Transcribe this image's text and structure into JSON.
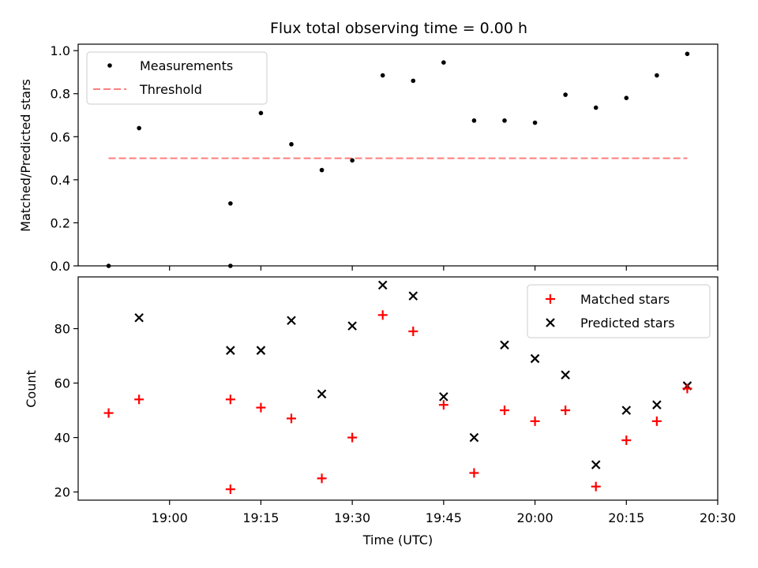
{
  "chart_data": [
    {
      "type": "scatter",
      "title": "Flux total observing time = 0.00 h",
      "xlabel": "",
      "ylabel": "Matched/Predicted stars",
      "xlim": [
        "18:45",
        "20:30"
      ],
      "ylim": [
        0,
        1.03
      ],
      "yticks": [
        "0.0",
        "0.2",
        "0.4",
        "0.6",
        "0.8",
        "1.0"
      ],
      "legend_position": "top-left",
      "series": [
        {
          "name": "Measurements",
          "marker": "dot",
          "color": "#000000",
          "x": [
            "18:50",
            "18:55",
            "19:10",
            "19:10",
            "19:15",
            "19:20",
            "19:25",
            "19:30",
            "19:35",
            "19:40",
            "19:45",
            "19:50",
            "19:55",
            "20:00",
            "20:05",
            "20:10",
            "20:15",
            "20:20",
            "20:25"
          ],
          "y": [
            0.0,
            0.64,
            0.0,
            0.29,
            0.71,
            0.565,
            0.445,
            0.49,
            0.885,
            0.86,
            0.945,
            0.675,
            0.675,
            0.665,
            0.795,
            0.735,
            0.78,
            0.885,
            0.985
          ]
        },
        {
          "name": "Threshold",
          "marker": "dashed-line",
          "color": "#ff7f7f",
          "x": [
            "18:50",
            "20:25"
          ],
          "y": [
            0.5,
            0.5
          ]
        }
      ]
    },
    {
      "type": "scatter",
      "xlabel": "Time (UTC)",
      "ylabel": "Count",
      "xlim": [
        "18:45",
        "20:30"
      ],
      "ylim": [
        17,
        99
      ],
      "yticks": [
        "20",
        "40",
        "60",
        "80"
      ],
      "xticks": [
        "19:00",
        "19:15",
        "19:30",
        "19:45",
        "20:00",
        "20:15",
        "20:30"
      ],
      "legend_position": "top-right",
      "series": [
        {
          "name": "Matched stars",
          "marker": "plus",
          "color": "#ff0000",
          "x": [
            "18:50",
            "18:55",
            "19:10",
            "19:10",
            "19:15",
            "19:20",
            "19:25",
            "19:30",
            "19:35",
            "19:40",
            "19:45",
            "19:50",
            "19:55",
            "20:00",
            "20:05",
            "20:10",
            "20:15",
            "20:20",
            "20:25"
          ],
          "y": [
            49,
            54,
            54,
            21,
            51,
            47,
            25,
            40,
            85,
            79,
            52,
            27,
            50,
            46,
            50,
            22,
            39,
            46,
            58
          ]
        },
        {
          "name": "Predicted stars",
          "marker": "x",
          "color": "#000000",
          "x": [
            "18:55",
            "19:10",
            "19:15",
            "19:20",
            "19:25",
            "19:30",
            "19:35",
            "19:40",
            "19:45",
            "19:50",
            "19:55",
            "20:00",
            "20:05",
            "20:10",
            "20:15",
            "20:20",
            "20:25"
          ],
          "y": [
            84,
            72,
            72,
            83,
            56,
            81,
            96,
            92,
            55,
            40,
            74,
            69,
            63,
            30,
            50,
            52,
            59
          ]
        }
      ]
    }
  ]
}
